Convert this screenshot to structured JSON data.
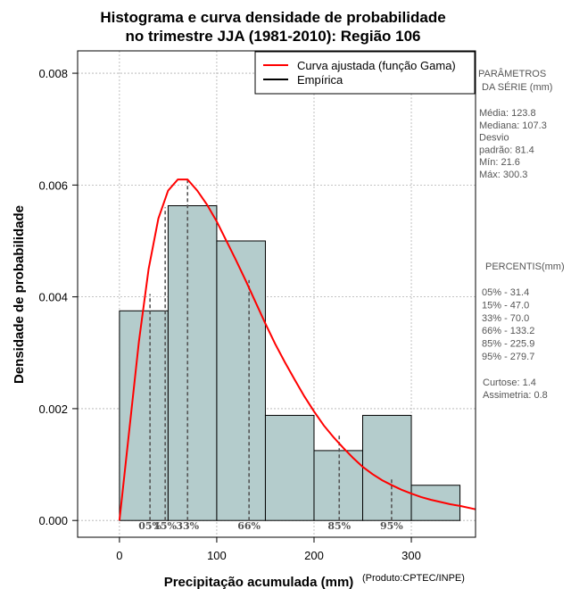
{
  "chart_data": {
    "type": "histogram",
    "title_line1": "Histograma e curva densidade de probabilidade",
    "title_line2": "no trimestre JJA (1981-2010): Região 106",
    "xlabel": "Precipitação acumulada (mm)",
    "ylabel": "Densidade de probabilidade",
    "credit": "(Produto:CPTEC/INPE)",
    "xlim": [
      -43,
      366
    ],
    "ylim": [
      -0.0003,
      0.0084
    ],
    "xticks": [
      0,
      100,
      200,
      300
    ],
    "xtick_labels": [
      "0",
      "100",
      "200",
      "300"
    ],
    "yticks": [
      0.0,
      0.002,
      0.004,
      0.006,
      0.008
    ],
    "ytick_labels": [
      "0.000",
      "0.002",
      "0.004",
      "0.006",
      "0.008"
    ],
    "grid": true,
    "bins": [
      {
        "start": 0,
        "end": 50,
        "density": 0.00375
      },
      {
        "start": 50,
        "end": 100,
        "density": 0.00563
      },
      {
        "start": 100,
        "end": 150,
        "density": 0.005
      },
      {
        "start": 150,
        "end": 200,
        "density": 0.00188
      },
      {
        "start": 200,
        "end": 250,
        "density": 0.00125
      },
      {
        "start": 250,
        "end": 300,
        "density": 0.00188
      },
      {
        "start": 300,
        "end": 350,
        "density": 0.00063
      }
    ],
    "bar_color": "#b4cccc",
    "curve": {
      "name": "Curva ajustada (função Gama)",
      "color": "#ff0000",
      "x": [
        0,
        10,
        20,
        30,
        40,
        50,
        60,
        70,
        80,
        90,
        100,
        110,
        120,
        130,
        140,
        150,
        160,
        170,
        180,
        190,
        200,
        210,
        220,
        230,
        240,
        250,
        260,
        270,
        280,
        290,
        300,
        310,
        320,
        330,
        340,
        350,
        366
      ],
      "y": [
        0.0,
        0.0016,
        0.0032,
        0.0045,
        0.0054,
        0.0059,
        0.0061,
        0.0061,
        0.0059,
        0.00565,
        0.00535,
        0.005,
        0.00465,
        0.00428,
        0.0039,
        0.00352,
        0.00316,
        0.00283,
        0.00252,
        0.00222,
        0.00195,
        0.0017,
        0.00149,
        0.0013,
        0.00112,
        0.00096,
        0.00083,
        0.00072,
        0.00063,
        0.00055,
        0.00048,
        0.00042,
        0.00037,
        0.00033,
        0.00029,
        0.00026,
        0.0002
      ]
    },
    "empirical": {
      "name": "Empírica",
      "color": "#000000"
    },
    "legend_position": "top-right",
    "percentile_lines": [
      {
        "label": "05%",
        "x": 31.4,
        "y": 0.00405
      },
      {
        "label": "15%",
        "x": 47.0,
        "y": 0.0056
      },
      {
        "label": "33%",
        "x": 70.0,
        "y": 0.0061
      },
      {
        "label": "66%",
        "x": 133.2,
        "y": 0.0043
      },
      {
        "label": "85%",
        "x": 225.9,
        "y": 0.00153
      },
      {
        "label": "95%",
        "x": 279.7,
        "y": 0.00078
      }
    ]
  },
  "side_panel": {
    "params_title_1": "PARÂMETROS",
    "params_title_2": "DA SÉRIE (mm)",
    "stats": [
      "Média:  123.8",
      "Mediana:  107.3",
      "Desvio",
      "padrão:  81.4",
      "Mín:  21.6",
      "Máx:  300.3"
    ],
    "percentis_title": "PERCENTIS(mm)",
    "percentis": [
      "05% -   31.4",
      "15% -   47.0",
      "33% -   70.0",
      "66% -  133.2",
      "85% -  225.9",
      "95% -  279.7"
    ],
    "shape": [
      "Curtose:  1.4",
      "Assimetria:  0.8"
    ]
  }
}
